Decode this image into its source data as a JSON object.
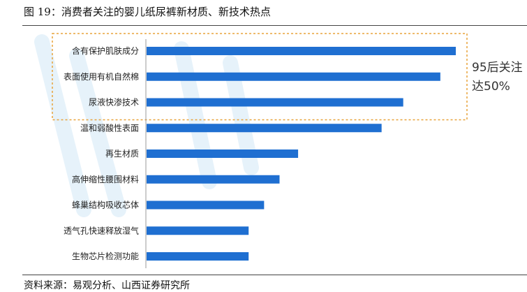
{
  "figure": {
    "title": "图 19：消费者关注的婴儿纸尿裤新材质、新技术热点",
    "source": "资料来源：易观分析、山西证券研究所"
  },
  "callout": {
    "line1": "95后关注",
    "line2": "达50%"
  },
  "colors": {
    "bar": "#1f6fd1",
    "highlight_border": "#e8a33a",
    "axis": "#999999"
  },
  "chart_data": {
    "type": "bar",
    "orientation": "horizontal",
    "categories": [
      "含有保护肌肤成分",
      "表面使用有机自然棉",
      "尿液快渗技术",
      "温和弱酸性表面",
      "再生材质",
      "高伸缩性腰围材料",
      "蜂巢结构吸收芯体",
      "透气孔快速释放湿气",
      "生物芯片检测功能"
    ],
    "values": [
      100,
      95,
      83,
      76,
      49,
      43,
      38,
      33,
      33
    ],
    "xlim": [
      0,
      100
    ],
    "grid": false,
    "highlighted_categories": [
      "含有保护肌肤成分",
      "表面使用有机自然棉",
      "尿液快渗技术"
    ]
  }
}
